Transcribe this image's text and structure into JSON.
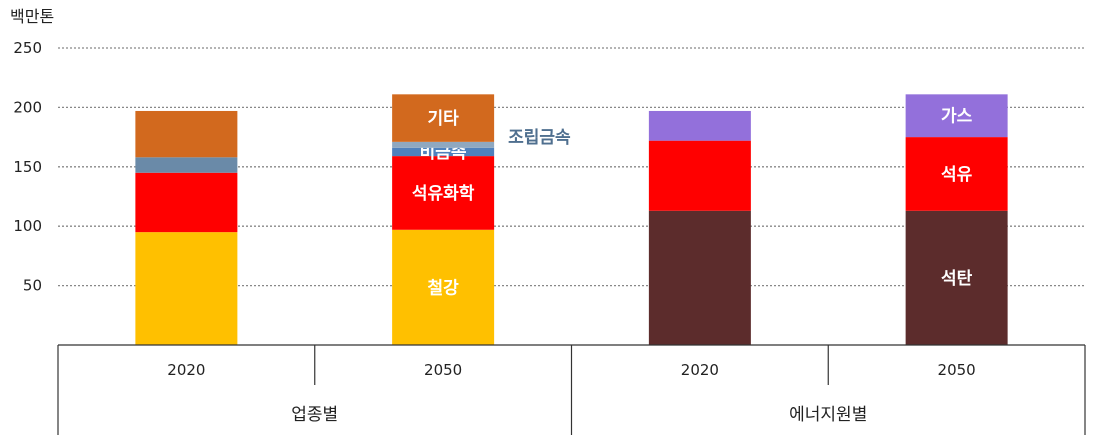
{
  "chart_data": {
    "type": "bar",
    "stacked": true,
    "unit_label": "백만톤",
    "ylim": [
      0,
      250
    ],
    "yticks": [
      50,
      100,
      150,
      200,
      250
    ],
    "grid": true,
    "groups": [
      {
        "label": "업종별",
        "categories": [
          "2020",
          "2050"
        ]
      },
      {
        "label": "에너지원별",
        "categories": [
          "2020",
          "2050"
        ]
      }
    ],
    "bars": [
      {
        "category": "2020",
        "group": "업종별",
        "segments": [
          {
            "value": 95,
            "color": "#FFC000",
            "label": ""
          },
          {
            "value": 50,
            "color": "#FF0000",
            "label": ""
          },
          {
            "value": 13,
            "color": "#6A8AA8",
            "label": ""
          },
          {
            "value": 39,
            "color": "#D2691E",
            "label": ""
          }
        ]
      },
      {
        "category": "2050",
        "group": "업종별",
        "segments": [
          {
            "value": 97,
            "color": "#FFC000",
            "label": "철강"
          },
          {
            "value": 62,
            "color": "#FF0000",
            "label": "석유화학"
          },
          {
            "value": 7,
            "color": "#4F81BD",
            "label": "비금속"
          },
          {
            "value": 5,
            "color": "#8FA8C0",
            "label": "조립금속",
            "label_position": "right"
          },
          {
            "value": 40,
            "color": "#D2691E",
            "label": "기타"
          }
        ]
      },
      {
        "category": "2020",
        "group": "에너지원별",
        "segments": [
          {
            "value": 113,
            "color": "#5C2C2C",
            "label": ""
          },
          {
            "value": 59,
            "color": "#FF0000",
            "label": ""
          },
          {
            "value": 25,
            "color": "#9370DB",
            "label": ""
          }
        ]
      },
      {
        "category": "2050",
        "group": "에너지원별",
        "segments": [
          {
            "value": 113,
            "color": "#5C2C2C",
            "label": "석탄"
          },
          {
            "value": 62,
            "color": "#FF0000",
            "label": "석유"
          },
          {
            "value": 36,
            "color": "#9370DB",
            "label": "가스"
          }
        ]
      }
    ]
  }
}
